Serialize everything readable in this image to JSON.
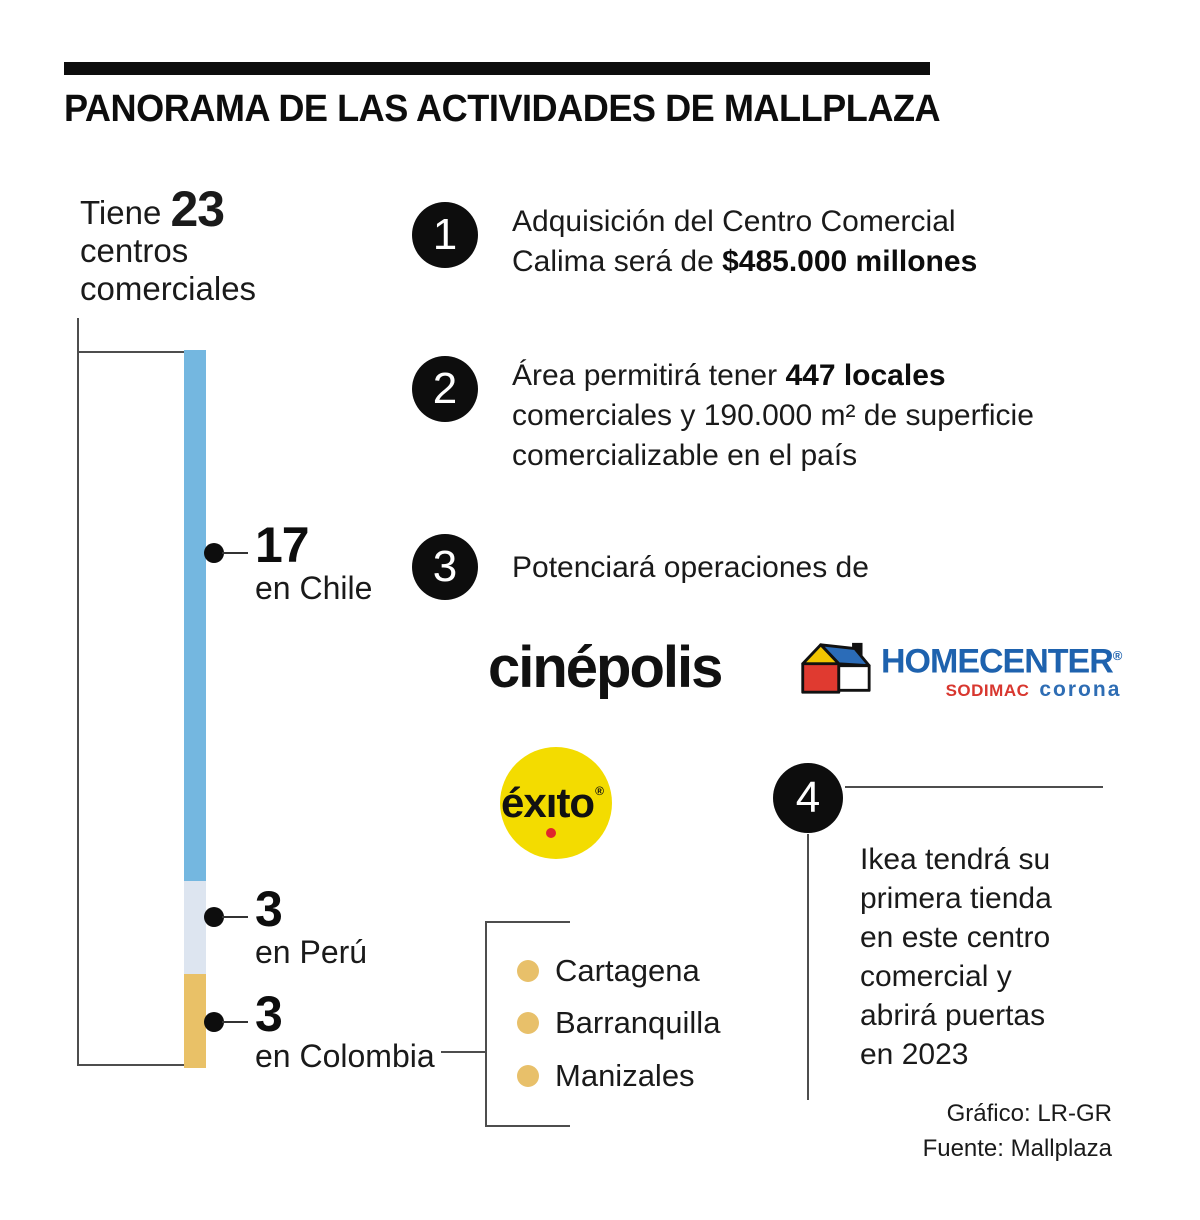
{
  "header": {
    "title": "PANORAMA DE LAS ACTIVIDADES DE MALLPLAZA"
  },
  "summary": {
    "prefix": "Tiene",
    "total": "23",
    "lines": "centros\ncomerciales"
  },
  "chart_data": {
    "type": "bar",
    "stacked": true,
    "orientation": "vertical",
    "title": "Tiene 23 centros comerciales",
    "categories": [
      "en Chile",
      "en Perú",
      "en Colombia"
    ],
    "values": [
      17,
      3,
      3
    ],
    "total": 23,
    "colors": [
      "#74B7E0",
      "#DDE5F0",
      "#E9C167"
    ],
    "legend": "none",
    "axis": "none"
  },
  "items": [
    {
      "number": "1",
      "pre": "Adquisición del Centro Comercial\nCalima será de ",
      "bold": "$485.000 millones",
      "post": ""
    },
    {
      "number": "2",
      "pre": "Área permitirá tener ",
      "bold": "447 locales",
      "post": "\ncomerciales y 190.000 m² de superficie\ncomercializable en el país"
    },
    {
      "number": "3",
      "pre": "Potenciará operaciones de",
      "bold": "",
      "post": ""
    },
    {
      "number": "4",
      "pre": "Ikea tendrá su\nprimera tienda\nen este centro\ncomercial y\nabrirá puertas\nen 2023",
      "bold": "",
      "post": ""
    }
  ],
  "logos": {
    "cinepolis": {
      "name": "cinépolis",
      "color": "#111111"
    },
    "homecenter": {
      "name": "HOMECENTER",
      "reg": "®",
      "sodimac": "SODIMAC",
      "corona": "corona",
      "blue": "#1E62AE",
      "red": "#D8372F"
    },
    "exito": {
      "p1": "éx",
      "i": "ı",
      "p2": "to",
      "reg": "®",
      "yellow": "#F3DC00",
      "dot_red": "#E0262C"
    }
  },
  "cities": {
    "list": [
      "Cartagena",
      "Barranquilla",
      "Manizales"
    ],
    "bullet_color": "#E8C06A"
  },
  "credits": {
    "graphic": "Gráfico: LR-GR",
    "source": "Fuente: Mallplaza"
  }
}
